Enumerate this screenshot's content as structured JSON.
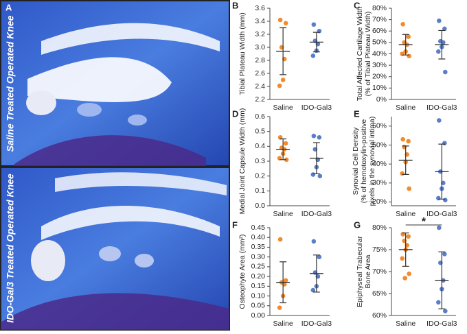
{
  "panel_a": {
    "label": "A",
    "captions": [
      "Saline Treated Operated Knee",
      "IDO-Gal3 Treated Operated Knee"
    ]
  },
  "chart_data": [
    {
      "type": "dot",
      "panel": "B",
      "ylabel": [
        "Tibial Plateau Width (mm)"
      ],
      "categories": [
        "Saline",
        "IDO-Gal3"
      ],
      "colors": [
        "#f28b2c",
        "#5a7fc8"
      ],
      "points": [
        [
          3.42,
          3.37,
          3.0,
          2.82,
          2.5,
          2.41
        ],
        [
          3.35,
          3.25,
          3.1,
          3.05,
          2.95,
          2.87
        ]
      ],
      "means": [
        2.94,
        3.08
      ],
      "errors": [
        0.36,
        0.15
      ],
      "ylim": [
        2.2,
        3.6
      ],
      "yticks": [
        2.2,
        2.4,
        2.6,
        2.8,
        {
          "value": 3,
          "label": "3.0"
        },
        3.2,
        3.4,
        3.6
      ]
    },
    {
      "type": "dot",
      "panel": "C",
      "ylabel": [
        "Total Affected Cartilage Width",
        "(% of Tibial Plateau Width)"
      ],
      "categories": [
        "Saline",
        "IDO-Gal3"
      ],
      "colors": [
        "#f28b2c",
        "#5a7fc8"
      ],
      "points": [
        [
          66,
          55,
          50,
          48,
          42,
          40,
          38
        ],
        [
          69,
          62,
          51,
          50,
          46,
          42,
          24
        ]
      ],
      "means": [
        48,
        48
      ],
      "errors": [
        9,
        12.5
      ],
      "ylim": [
        0,
        80
      ],
      "yticks": [
        {
          "value": 0,
          "label": "0%"
        },
        {
          "value": 10,
          "label": "10%"
        },
        {
          "value": 20,
          "label": "20%"
        },
        {
          "value": 30,
          "label": "30%"
        },
        {
          "value": 40,
          "label": "40%"
        },
        {
          "value": 50,
          "label": "50%"
        },
        {
          "value": 60,
          "label": "60%"
        },
        {
          "value": 70,
          "label": "70%"
        },
        {
          "value": 80,
          "label": "80%"
        }
      ]
    },
    {
      "type": "dot",
      "panel": "D",
      "ylabel": [
        "Medial Joint Capsule Width (mm)"
      ],
      "categories": [
        "Saline",
        "IDO-Gal3"
      ],
      "colors": [
        "#f28b2c",
        "#5a7fc8"
      ],
      "points": [
        [
          0.46,
          0.42,
          0.39,
          0.38,
          0.35,
          0.32,
          0.31
        ],
        [
          0.47,
          0.46,
          0.38,
          0.31,
          0.26,
          0.21,
          0.2
        ]
      ],
      "means": [
        0.38,
        0.32
      ],
      "errors": [
        0.07,
        0.105
      ],
      "ylim": [
        0,
        0.6
      ],
      "yticks": [
        {
          "value": 0,
          "label": "0.0"
        },
        0.1,
        0.2,
        0.3,
        0.4,
        0.5,
        0.6
      ]
    },
    {
      "type": "dot",
      "panel": "E",
      "ylabel": [
        "Synovial Cell Density",
        "(% of hemotoxylin-positive",
        "pixels in the synovial intima)"
      ],
      "categories": [
        "Saline",
        "IDO-Gal3"
      ],
      "colors": [
        "#f28b2c",
        "#5a7fc8"
      ],
      "points": [
        [
          53,
          52,
          49,
          45,
          41,
          35,
          27
        ],
        [
          63,
          51,
          36,
          30,
          27,
          22,
          21
        ]
      ],
      "means": [
        42,
        36
      ],
      "errors": [
        7.5,
        14.5
      ],
      "ylim": [
        18,
        65
      ],
      "yticks": [
        {
          "value": 20,
          "label": "20%"
        },
        {
          "value": 30,
          "label": "30%"
        },
        {
          "value": 40,
          "label": "40%"
        },
        {
          "value": 50,
          "label": "50%"
        },
        {
          "value": 60,
          "label": "60%"
        }
      ]
    },
    {
      "type": "dot",
      "panel": "F",
      "ylabel": [
        "Osteophyte Area (mm²)"
      ],
      "categories": [
        "Saline",
        "IDO-Gal3"
      ],
      "colors": [
        "#f28b2c",
        "#5a7fc8"
      ],
      "points": [
        [
          0.39,
          0.18,
          0.17,
          0.16,
          0.1,
          0.04
        ],
        [
          0.38,
          0.3,
          0.22,
          0.2,
          0.15,
          0.13
        ]
      ],
      "means": [
        0.17,
        0.215
      ],
      "errors": [
        0.105,
        0.095
      ],
      "ylim": [
        0,
        0.45
      ],
      "yticks": [
        {
          "value": 0,
          "label": "0.00"
        },
        0.05,
        {
          "value": 0.1,
          "label": "0.10"
        },
        0.15,
        {
          "value": 0.2,
          "label": "0.20"
        },
        0.25,
        {
          "value": 0.3,
          "label": "0.30"
        },
        0.35,
        {
          "value": 0.4,
          "label": "0.40"
        },
        0.45
      ]
    },
    {
      "type": "dot",
      "panel": "G",
      "ylabel": [
        "Epiphyseal Trabecular",
        "Bone Area"
      ],
      "categories": [
        "Saline",
        "IDO-Gal3"
      ],
      "colors": [
        "#f28b2c",
        "#5a7fc8"
      ],
      "points": [
        [
          78.5,
          78,
          77,
          76,
          75,
          73,
          69.5,
          68.5
        ],
        [
          80,
          74,
          72,
          68,
          66,
          63,
          61
        ]
      ],
      "means": [
        75,
        68
      ],
      "errors": [
        3.8,
        6.5
      ],
      "ylim": [
        60,
        80
      ],
      "yticks": [
        {
          "value": 60,
          "label": "60%"
        },
        {
          "value": 65,
          "label": "65%"
        },
        {
          "value": 70,
          "label": "70%"
        },
        {
          "value": 75,
          "label": "75%"
        },
        {
          "value": 80,
          "label": "80%"
        }
      ],
      "annotation": "*"
    }
  ]
}
